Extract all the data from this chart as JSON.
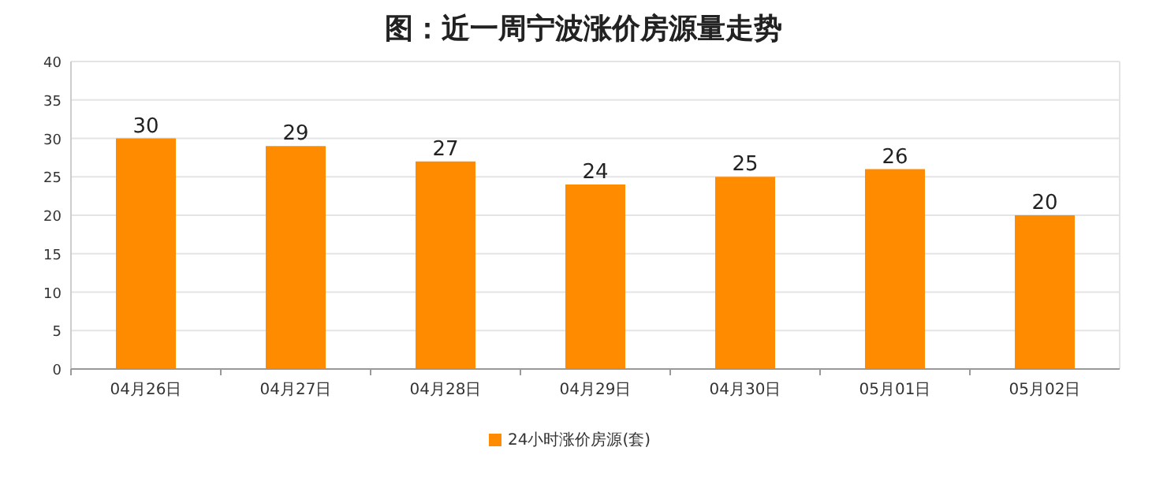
{
  "chart_data": {
    "type": "bar",
    "title": "图：近一周宁波涨价房源量走势",
    "categories": [
      "04月26日",
      "04月27日",
      "04月28日",
      "04月29日",
      "04月30日",
      "05月01日",
      "05月02日"
    ],
    "series": [
      {
        "name": "24小时涨价房源(套)",
        "color": "#ff8c00",
        "values": [
          30,
          29,
          27,
          24,
          25,
          26,
          20
        ]
      }
    ],
    "ylim": [
      0,
      40
    ],
    "yticks": [
      0,
      5,
      10,
      15,
      20,
      25,
      30,
      35,
      40
    ],
    "grid": "y",
    "legend": "bottom",
    "data_labels": true
  }
}
